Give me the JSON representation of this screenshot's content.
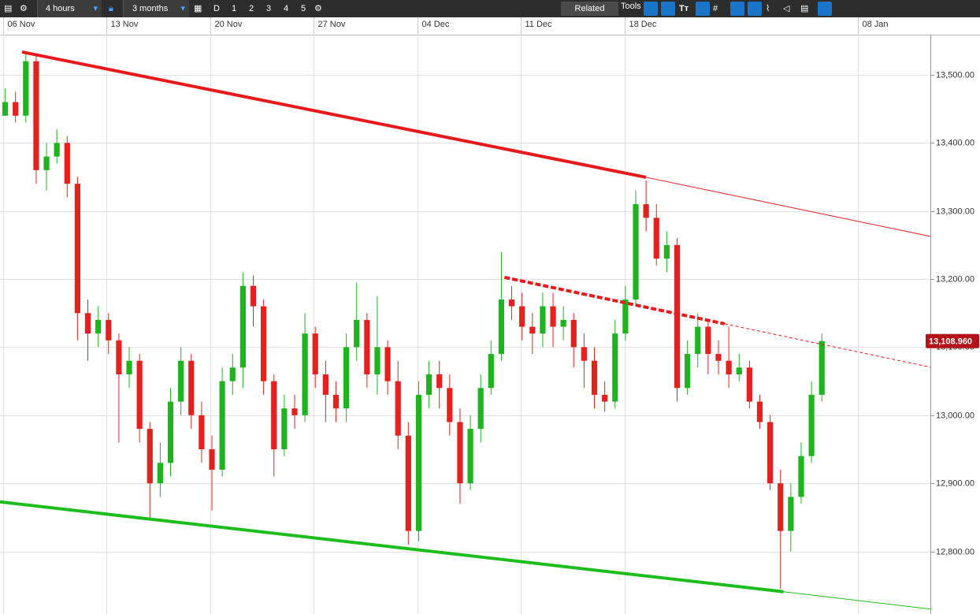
{
  "toolbar": {
    "interval": "4 hours",
    "range": "3 months",
    "period_buttons": [
      "D",
      "1",
      "2",
      "3",
      "4",
      "5"
    ],
    "related": "Related",
    "tools": "Tools"
  },
  "chart_data": {
    "type": "candlestick",
    "xlim": [
      0,
      90
    ],
    "xticks": [
      {
        "value": 0.3,
        "label": "06 Nov"
      },
      {
        "value": 10.3,
        "label": "13 Nov"
      },
      {
        "value": 20.35,
        "label": "20 Nov"
      },
      {
        "value": 30.3,
        "label": "27 Nov"
      },
      {
        "value": 40.4,
        "label": "04 Dec"
      },
      {
        "value": 50.4,
        "label": "11 Dec"
      },
      {
        "value": 60.4,
        "label": "18 Dec"
      },
      {
        "value": 83,
        "label": "08 Jan"
      }
    ],
    "ylim": [
      12708,
      13559
    ],
    "yticks": [
      {
        "value": 12800,
        "label": "12,800.00"
      },
      {
        "value": 12900,
        "label": "12,900.00"
      },
      {
        "value": 13000,
        "label": "13,000.00"
      },
      {
        "value": 13100,
        "label": "13,100.00"
      },
      {
        "value": 13200,
        "label": "13,200.00"
      },
      {
        "value": 13300,
        "label": "13,300.00"
      },
      {
        "value": 13400,
        "label": "13,400.00"
      },
      {
        "value": 13500,
        "label": "13,500.00"
      }
    ],
    "grid": true,
    "up_color": "#1fb31f",
    "down_color": "#e3211f",
    "x": [
      0.5,
      1.5,
      2.5,
      3.5,
      4.5,
      5.5,
      6.5,
      7.5,
      8.5,
      9.5,
      10.5,
      11.5,
      12.5,
      13.5,
      14.5,
      15.5,
      16.5,
      17.5,
      18.5,
      19.5,
      20.5,
      21.5,
      22.5,
      23.5,
      24.5,
      25.5,
      26.5,
      27.5,
      28.5,
      29.5,
      30.5,
      31.5,
      32.5,
      33.5,
      34.5,
      35.5,
      36.5,
      37.5,
      38.5,
      39.5,
      40.5,
      41.5,
      42.5,
      43.5,
      44.5,
      45.5,
      46.5,
      47.5,
      48.5,
      49.5,
      50.5,
      51.5,
      52.5,
      53.5,
      54.5,
      55.5,
      56.5,
      57.5,
      58.5,
      59.5,
      60.5,
      61.5,
      62.5,
      63.5,
      64.5,
      65.5,
      66.5,
      67.5,
      68.5,
      69.5,
      70.5,
      71.5,
      72.5,
      73.5,
      74.5,
      75.5,
      76.5,
      77.5,
      78.5,
      79.5
    ],
    "open": [
      13440,
      13460,
      13440,
      13520,
      13360,
      13380,
      13400,
      13340,
      13150,
      13120,
      13140,
      13110,
      13060,
      13080,
      12980,
      12900,
      12930,
      13020,
      13080,
      13000,
      12950,
      12920,
      13050,
      13070,
      13190,
      13160,
      13050,
      12950,
      13010,
      13000,
      13120,
      13060,
      13030,
      13010,
      13100,
      13140,
      13060,
      13100,
      13050,
      12970,
      12830,
      13030,
      13060,
      13040,
      12990,
      12900,
      12980,
      13040,
      13090,
      13170,
      13160,
      13130,
      13120,
      13160,
      13130,
      13140,
      13100,
      13080,
      13030,
      13020,
      13120,
      13170,
      13310,
      13290,
      13230,
      13250,
      13040,
      13090,
      13130,
      13090,
      13080,
      13060,
      13070,
      13020,
      12990,
      12900,
      12830,
      12880,
      12940,
      13030
    ],
    "high": [
      13480,
      13475,
      13535,
      13530,
      13400,
      13420,
      13410,
      13350,
      13170,
      13160,
      13150,
      13120,
      13100,
      13090,
      12990,
      12960,
      13040,
      13100,
      13090,
      13020,
      12970,
      13070,
      13090,
      13210,
      13205,
      13170,
      13060,
      13030,
      13030,
      13150,
      13130,
      13080,
      13050,
      13120,
      13195,
      13150,
      13175,
      13110,
      13080,
      12990,
      13050,
      13080,
      13080,
      13060,
      13010,
      13000,
      13060,
      13110,
      13240,
      13190,
      13180,
      13150,
      13180,
      13180,
      13160,
      13150,
      13120,
      13100,
      13050,
      13140,
      13190,
      13330,
      13345,
      13310,
      13270,
      13260,
      13110,
      13150,
      13140,
      13110,
      13130,
      13090,
      13080,
      13030,
      13000,
      12920,
      12900,
      12960,
      13050,
      13120
    ],
    "low": [
      13440,
      13430,
      13430,
      13340,
      13330,
      13370,
      13320,
      13110,
      13080,
      13100,
      13090,
      12960,
      13040,
      12960,
      12850,
      12880,
      12910,
      13000,
      12980,
      12930,
      12860,
      12910,
      13030,
      13040,
      13130,
      13030,
      12910,
      12940,
      12980,
      12990,
      13040,
      12990,
      12990,
      12990,
      13080,
      13040,
      13030,
      13030,
      12950,
      12810,
      12815,
      13010,
      13010,
      12970,
      12870,
      12890,
      12960,
      13030,
      13080,
      13140,
      13110,
      13090,
      13100,
      13100,
      13110,
      13070,
      13040,
      13010,
      13005,
      13010,
      13110,
      13160,
      13270,
      13220,
      13210,
      13020,
      13030,
      13070,
      13060,
      13060,
      13040,
      13050,
      13010,
      12980,
      12890,
      12745,
      12800,
      12870,
      12930,
      13020
    ],
    "close": [
      13460,
      13440,
      13520,
      13360,
      13380,
      13400,
      13340,
      13150,
      13120,
      13140,
      13110,
      13060,
      13080,
      12980,
      12900,
      12930,
      13020,
      13080,
      13000,
      12950,
      12920,
      13050,
      13070,
      13190,
      13160,
      13050,
      12950,
      13010,
      13000,
      13120,
      13060,
      13030,
      13010,
      13100,
      13140,
      13060,
      13100,
      13050,
      12970,
      12830,
      13030,
      13060,
      13040,
      12990,
      12900,
      12980,
      13040,
      13090,
      13170,
      13160,
      13130,
      13120,
      13160,
      13130,
      13140,
      13100,
      13080,
      13030,
      13020,
      13120,
      13170,
      13310,
      13290,
      13230,
      13250,
      13040,
      13090,
      13130,
      13090,
      13080,
      13060,
      13070,
      13020,
      12990,
      12900,
      12830,
      12880,
      12940,
      13030,
      13108.96
    ],
    "trendlines": [
      {
        "color": "#e8191b",
        "dashed": false,
        "x": [
          2.13,
          62.5,
          90
        ],
        "y": [
          13533.6,
          13349.5,
          13262.7
        ]
      },
      {
        "color": "#e8191b",
        "dashed": true,
        "x": [
          48.8,
          70.1,
          90
        ],
        "y": [
          13202.5,
          13134.3,
          13070.6
        ]
      },
      {
        "color": "#1ebd1e",
        "dashed": false,
        "x": [
          0,
          75.8,
          90
        ],
        "y": [
          12872.7,
          12740.7,
          12715.3
        ]
      }
    ],
    "last_price": {
      "value": 13108.96,
      "label": "13,108.960"
    }
  }
}
